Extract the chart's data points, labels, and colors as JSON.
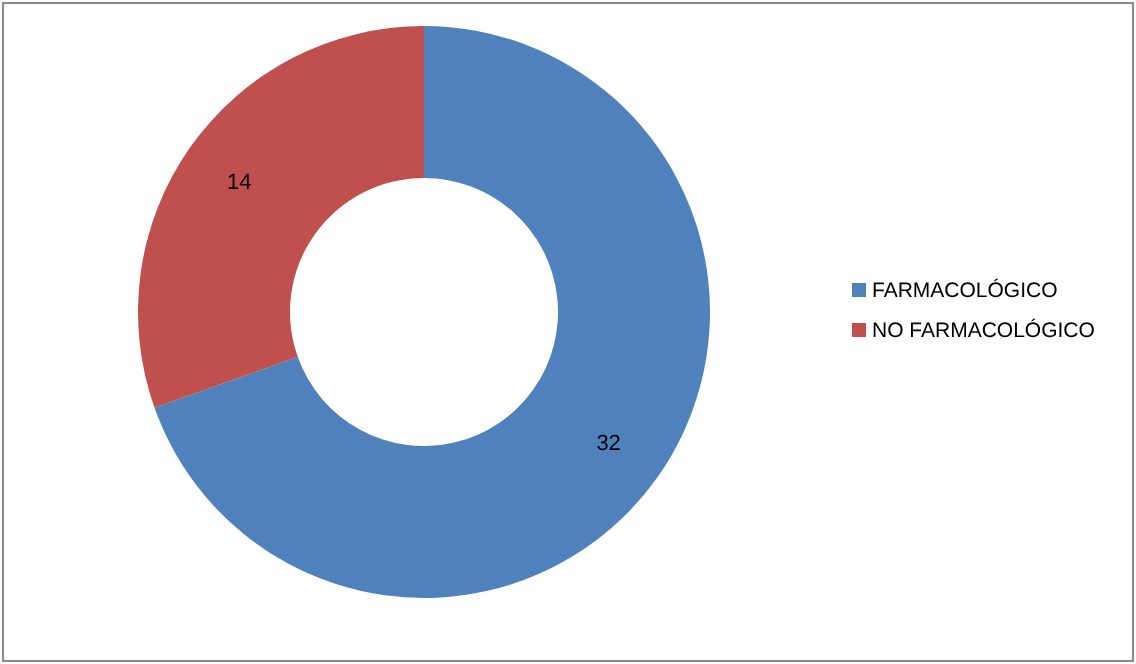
{
  "chart_data": {
    "type": "donut",
    "categories": [
      "FARMACOLÓGICO",
      "NO FARMACOLÓGICO"
    ],
    "values": [
      32,
      14
    ],
    "colors": [
      "#4f81bd",
      "#c0504d"
    ],
    "data_labels": true,
    "legend": "right"
  }
}
